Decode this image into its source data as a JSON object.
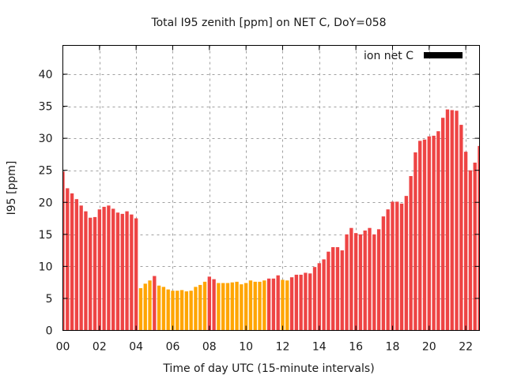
{
  "chart_data": {
    "type": "bar",
    "title": "Total I95 zenith [ppm] on NET C, DoY=058",
    "xlabel": "Time of day UTC (15-minute intervals)",
    "ylabel": "I95 [ppm]",
    "xlim": [
      0,
      22.75
    ],
    "ylim": [
      0,
      44.5
    ],
    "xticks": [
      0,
      2,
      4,
      6,
      8,
      10,
      12,
      14,
      16,
      18,
      20,
      22
    ],
    "xtick_labels": [
      "00",
      "02",
      "04",
      "06",
      "08",
      "10",
      "12",
      "14",
      "16",
      "18",
      "20",
      "22"
    ],
    "yticks": [
      0,
      5,
      10,
      15,
      20,
      25,
      30,
      35,
      40
    ],
    "ytick_labels": [
      "0",
      "5",
      "10",
      "15",
      "20",
      "25",
      "30",
      "35",
      "40"
    ],
    "grid": true,
    "legend": {
      "label": "ion net C",
      "placement": "top-right",
      "color": "#000000"
    },
    "colors": {
      "high": "#ee4444",
      "low": "#ffa500"
    },
    "threshold_note": "bars colored orange when value below ~8",
    "bin_hours": 0.25,
    "values": [
      24.8,
      22.2,
      21.4,
      20.5,
      19.5,
      18.6,
      17.6,
      17.7,
      18.9,
      19.3,
      19.5,
      19.0,
      18.4,
      18.2,
      18.6,
      18.1,
      17.5,
      6.6,
      7.3,
      7.8,
      8.5,
      7.0,
      6.8,
      6.4,
      6.2,
      6.2,
      6.3,
      6.1,
      6.2,
      6.8,
      7.1,
      7.6,
      8.4,
      8.0,
      7.4,
      7.4,
      7.4,
      7.5,
      7.6,
      7.2,
      7.4,
      7.8,
      7.6,
      7.6,
      7.8,
      8.1,
      8.1,
      8.6,
      7.9,
      7.8,
      8.3,
      8.7,
      8.7,
      9.0,
      8.9,
      9.9,
      10.5,
      11.1,
      12.3,
      13.0,
      13.0,
      12.5,
      15.0,
      16.0,
      15.2,
      15.0,
      15.6,
      16.0,
      15.0,
      15.8,
      17.8,
      18.9,
      20.1,
      20.1,
      19.8,
      21.0,
      24.1,
      27.8,
      29.6,
      29.8,
      30.3,
      30.4,
      31.1,
      33.2,
      34.5,
      34.4,
      34.3,
      32.1,
      27.9,
      25.0,
      26.2,
      28.8
    ],
    "bar_colors": [
      "high",
      "high",
      "high",
      "high",
      "high",
      "high",
      "high",
      "high",
      "high",
      "high",
      "high",
      "high",
      "high",
      "high",
      "high",
      "high",
      "high",
      "low",
      "low",
      "low",
      "high",
      "low",
      "low",
      "low",
      "low",
      "low",
      "low",
      "low",
      "low",
      "low",
      "low",
      "low",
      "high",
      "high",
      "low",
      "low",
      "low",
      "low",
      "low",
      "low",
      "low",
      "low",
      "low",
      "low",
      "low",
      "high",
      "high",
      "high",
      "low",
      "low",
      "high",
      "high",
      "high",
      "high",
      "high",
      "high",
      "high",
      "high",
      "high",
      "high",
      "high",
      "high",
      "high",
      "high",
      "high",
      "high",
      "high",
      "high",
      "high",
      "high",
      "high",
      "high",
      "high",
      "high",
      "high",
      "high",
      "high",
      "high",
      "high",
      "high",
      "high",
      "high",
      "high",
      "high",
      "high",
      "high",
      "high",
      "high",
      "high",
      "high",
      "high",
      "high"
    ]
  }
}
